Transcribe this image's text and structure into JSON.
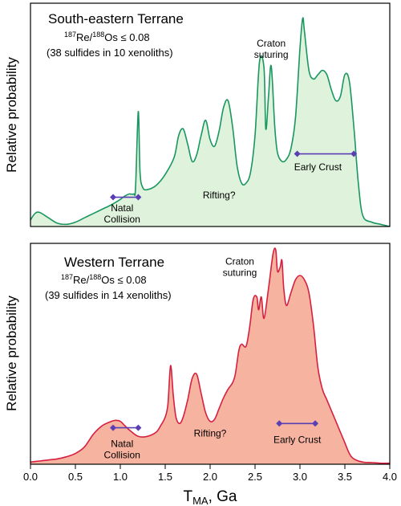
{
  "x_axis": {
    "label_main": "T",
    "label_sub": "MA",
    "label_rest": ", Ga",
    "range": [
      0.0,
      4.0
    ],
    "ticks": [
      "0.0",
      "0.5",
      "1.0",
      "1.5",
      "2.0",
      "2.5",
      "3.0",
      "3.5",
      "4.0"
    ]
  },
  "chart_data": [
    {
      "type": "area",
      "title": "South-eastern Terrane",
      "isotope_line": {
        "pre": "187",
        "a": "Re/",
        "mid": "188",
        "b": "Os ≤ 0.08"
      },
      "sample_line": "(38 sulfides in 10 xenoliths)",
      "ylabel": "Relative probability",
      "xlim": [
        0.0,
        4.0
      ],
      "ylim": [
        0,
        1
      ],
      "fill_color": "#dff3dc",
      "line_color": "#1a9660",
      "x": [
        0.0,
        0.05,
        0.1,
        0.2,
        0.3,
        0.4,
        0.5,
        0.6,
        0.7,
        0.8,
        0.9,
        1.0,
        1.05,
        1.1,
        1.15,
        1.17,
        1.2,
        1.22,
        1.25,
        1.3,
        1.4,
        1.5,
        1.6,
        1.65,
        1.7,
        1.75,
        1.8,
        1.85,
        1.9,
        1.95,
        2.0,
        2.05,
        2.1,
        2.15,
        2.2,
        2.25,
        2.3,
        2.35,
        2.4,
        2.45,
        2.5,
        2.55,
        2.6,
        2.62,
        2.65,
        2.68,
        2.72,
        2.75,
        2.8,
        2.85,
        2.9,
        2.95,
        3.0,
        3.03,
        3.05,
        3.1,
        3.15,
        3.2,
        3.25,
        3.3,
        3.35,
        3.4,
        3.45,
        3.5,
        3.55,
        3.6,
        3.65,
        3.7,
        3.8,
        3.9,
        4.0
      ],
      "y": [
        0.03,
        0.06,
        0.065,
        0.04,
        0.015,
        0.01,
        0.02,
        0.04,
        0.06,
        0.08,
        0.1,
        0.125,
        0.14,
        0.15,
        0.15,
        0.18,
        0.53,
        0.25,
        0.18,
        0.17,
        0.19,
        0.24,
        0.32,
        0.42,
        0.45,
        0.38,
        0.3,
        0.33,
        0.42,
        0.49,
        0.4,
        0.37,
        0.44,
        0.55,
        0.58,
        0.46,
        0.28,
        0.2,
        0.2,
        0.25,
        0.42,
        0.76,
        0.73,
        0.45,
        0.6,
        0.74,
        0.46,
        0.34,
        0.3,
        0.31,
        0.36,
        0.5,
        0.82,
        0.96,
        0.9,
        0.72,
        0.68,
        0.7,
        0.72,
        0.7,
        0.63,
        0.58,
        0.6,
        0.7,
        0.67,
        0.46,
        0.2,
        0.05,
        0.02,
        0.01,
        0.0
      ],
      "annotations": [
        {
          "lines": [
            "Craton",
            "suturing"
          ],
          "x": 2.68,
          "y": 0.83
        },
        {
          "lines": [
            "Rifting?"
          ],
          "x": 2.1,
          "y": 0.13
        },
        {
          "lines": [
            "Early Crust"
          ],
          "x": 3.2,
          "y": 0.26
        },
        {
          "lines": [
            "Natal",
            "Collision"
          ],
          "x": 1.02,
          "y": 0.07
        }
      ],
      "ranges": [
        {
          "label": "Natal Collision",
          "x0": 0.92,
          "x1": 1.2,
          "y": 0.135
        },
        {
          "label": "Early Crust",
          "x0": 2.97,
          "x1": 3.6,
          "y": 0.335
        }
      ]
    },
    {
      "type": "area",
      "title": "Western Terrane",
      "isotope_line": {
        "pre": "187",
        "a": "Re/",
        "mid": "188",
        "b": "Os ≤ 0.08"
      },
      "sample_line": "(39 sulfides in 14 xenoliths)",
      "ylabel": "Relative probability",
      "xlim": [
        0.0,
        4.0
      ],
      "ylim": [
        0,
        1
      ],
      "fill_color": "#f6b3a0",
      "line_color": "#d62040",
      "x": [
        0.0,
        0.1,
        0.2,
        0.3,
        0.4,
        0.5,
        0.6,
        0.7,
        0.8,
        0.9,
        0.95,
        1.0,
        1.05,
        1.1,
        1.2,
        1.3,
        1.4,
        1.45,
        1.5,
        1.53,
        1.56,
        1.59,
        1.62,
        1.66,
        1.7,
        1.75,
        1.8,
        1.85,
        1.9,
        1.95,
        2.0,
        2.05,
        2.1,
        2.15,
        2.2,
        2.25,
        2.28,
        2.32,
        2.35,
        2.4,
        2.44,
        2.48,
        2.52,
        2.54,
        2.57,
        2.6,
        2.65,
        2.7,
        2.73,
        2.75,
        2.78,
        2.8,
        2.82,
        2.85,
        2.9,
        2.95,
        3.0,
        3.05,
        3.1,
        3.15,
        3.2,
        3.25,
        3.3,
        3.35,
        3.4,
        3.45,
        3.5,
        3.55,
        3.6,
        3.7,
        3.8,
        3.9,
        4.0
      ],
      "y": [
        0.01,
        0.015,
        0.02,
        0.025,
        0.035,
        0.05,
        0.08,
        0.14,
        0.18,
        0.2,
        0.205,
        0.2,
        0.18,
        0.16,
        0.13,
        0.13,
        0.15,
        0.18,
        0.22,
        0.28,
        0.46,
        0.32,
        0.22,
        0.19,
        0.22,
        0.3,
        0.4,
        0.42,
        0.33,
        0.24,
        0.2,
        0.21,
        0.26,
        0.31,
        0.35,
        0.38,
        0.42,
        0.53,
        0.56,
        0.55,
        0.64,
        0.77,
        0.78,
        0.72,
        0.78,
        0.68,
        0.82,
        0.98,
        1.0,
        0.9,
        0.92,
        0.95,
        0.82,
        0.74,
        0.8,
        0.86,
        0.88,
        0.86,
        0.8,
        0.65,
        0.45,
        0.35,
        0.3,
        0.25,
        0.2,
        0.15,
        0.1,
        0.05,
        0.025,
        0.01,
        0.008,
        0.005,
        0.005
      ],
      "annotations": [
        {
          "lines": [
            "Craton",
            "suturing"
          ],
          "x": 2.33,
          "y": 0.93
        },
        {
          "lines": [
            "Rifting?"
          ],
          "x": 2.0,
          "y": 0.13
        },
        {
          "lines": [
            "Early Crust"
          ],
          "x": 2.97,
          "y": 0.1
        },
        {
          "lines": [
            "Natal",
            "Collision"
          ],
          "x": 1.02,
          "y": 0.08
        }
      ],
      "ranges": [
        {
          "label": "Natal Collision",
          "x0": 0.92,
          "x1": 1.2,
          "y": 0.17
        },
        {
          "label": "Early Crust",
          "x0": 2.77,
          "x1": 3.17,
          "y": 0.19
        }
      ]
    }
  ]
}
